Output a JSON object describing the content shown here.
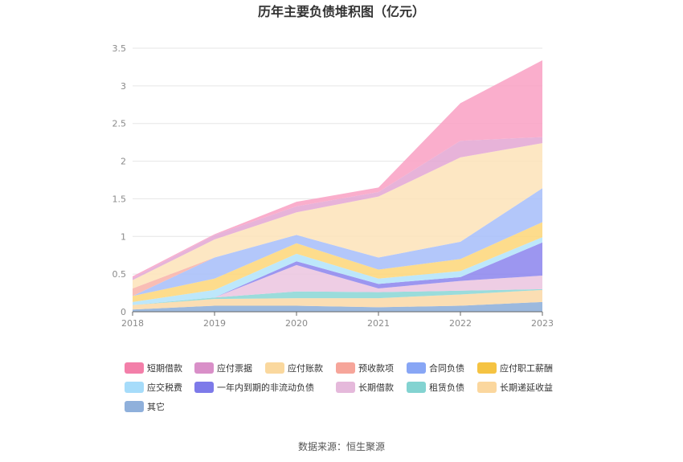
{
  "chart_data": {
    "type": "area",
    "stacked": true,
    "title": "历年主要负债堆积图（亿元）",
    "x": [
      "2018",
      "2019",
      "2020",
      "2021",
      "2022",
      "2023"
    ],
    "ylim": [
      0,
      3.5
    ],
    "yticks": [
      "0",
      "0.5",
      "1",
      "1.5",
      "2",
      "2.5",
      "3",
      "3.5"
    ],
    "xlabel": "",
    "ylabel": "",
    "grid": true,
    "legend_position": "bottom",
    "series": [
      {
        "name": "其它",
        "color": "#8eafd9",
        "values": [
          0.03,
          0.08,
          0.08,
          0.06,
          0.08,
          0.13
        ]
      },
      {
        "name": "长期递延收益",
        "color": "#fbd9a8",
        "values": [
          0.06,
          0.09,
          0.1,
          0.12,
          0.15,
          0.16
        ]
      },
      {
        "name": "租赁负债",
        "color": "#8cd7d6",
        "values": [
          0,
          0.02,
          0.09,
          0.08,
          0.05,
          0.01
        ]
      },
      {
        "name": "长期借款",
        "color": "#ecc6e0",
        "values": [
          0,
          0,
          0.35,
          0.05,
          0.13,
          0.18
        ]
      },
      {
        "name": "一年内到期的非流动负债",
        "color": "#8e88ee",
        "values": [
          0,
          0,
          0.05,
          0.06,
          0.05,
          0.44
        ]
      },
      {
        "name": "应交税费",
        "color": "#b4e4fa",
        "values": [
          0.04,
          0.1,
          0.1,
          0.07,
          0.08,
          0.07
        ]
      },
      {
        "name": "应付职工薪酬",
        "color": "#fdd77c",
        "values": [
          0.08,
          0.15,
          0.14,
          0.12,
          0.16,
          0.2
        ]
      },
      {
        "name": "合同负债",
        "color": "#a9bff9",
        "values": [
          0,
          0.28,
          0.11,
          0.16,
          0.23,
          0.45
        ]
      },
      {
        "name": "预收款项",
        "color": "#f8b4ab",
        "values": [
          0.1,
          0,
          0,
          0,
          0,
          0
        ]
      },
      {
        "name": "应付账款",
        "color": "#fde4bb",
        "values": [
          0.11,
          0.24,
          0.3,
          0.81,
          1.12,
          0.6
        ]
      },
      {
        "name": "应付票据",
        "color": "#e4a8d4",
        "values": [
          0.03,
          0.06,
          0.08,
          0.06,
          0.22,
          0.08
        ]
      },
      {
        "name": "短期借款",
        "color": "#f9a3c5",
        "values": [
          0.02,
          0.01,
          0.06,
          0.06,
          0.5,
          1.02
        ]
      }
    ],
    "legend_order": [
      "短期借款",
      "应付票据",
      "应付账款",
      "预收款项",
      "合同负债",
      "应付职工薪酬",
      "应交税费",
      "一年内到期的非流动负债",
      "长期借款",
      "租赁负债",
      "长期递延收益",
      "其它"
    ],
    "legend_colors": {
      "短期借款": "#f37fa9",
      "应付票据": "#d98fc8",
      "应付账款": "#fad89e",
      "预收款项": "#f6a59a",
      "合同负债": "#88a6f5",
      "应付职工薪酬": "#f5c342",
      "应交税费": "#a6dcfa",
      "一年内到期的非流动负债": "#7d7ae9",
      "长期借款": "#e5b9db",
      "租赁负债": "#83d3d1",
      "长期递延收益": "#fbd79e",
      "其它": "#8fb0db"
    }
  },
  "source": "数据来源：恒生聚源"
}
